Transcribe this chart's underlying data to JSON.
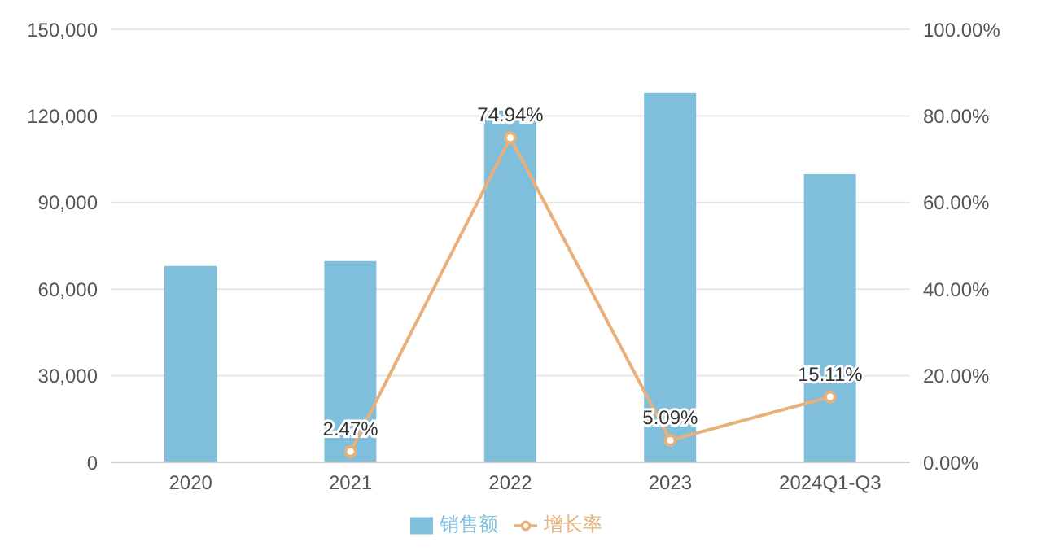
{
  "chart_data": {
    "type": "bar",
    "categories": [
      "2020",
      "2021",
      "2022",
      "2023",
      "2024Q1-Q3"
    ],
    "series": [
      {
        "name": "销售额",
        "color": "#7fbfdc",
        "values": [
          68000,
          69700,
          121900,
          128100,
          99800
        ]
      },
      {
        "name": "增长率",
        "type": "line",
        "axis": "y2",
        "color": "#e8b07a",
        "marker": "circle",
        "values": [
          null,
          2.47,
          74.94,
          5.09,
          15.11
        ],
        "value_labels": [
          null,
          "2.47%",
          "74.94%",
          "5.09%",
          "15.11%"
        ]
      }
    ],
    "ylim": [
      0,
      150000
    ],
    "yticks": [
      {
        "value": 0,
        "label": "0"
      },
      {
        "value": 30000,
        "label": "30,000"
      },
      {
        "value": 60000,
        "label": "60,000"
      },
      {
        "value": 90000,
        "label": "90,000"
      },
      {
        "value": 120000,
        "label": "120,000"
      },
      {
        "value": 150000,
        "label": "150,000"
      }
    ],
    "y2lim": [
      0,
      100
    ],
    "y2ticks": [
      {
        "value": 0,
        "label": "0.00%"
      },
      {
        "value": 20,
        "label": "20.00%"
      },
      {
        "value": 40,
        "label": "40.00%"
      },
      {
        "value": 60,
        "label": "60.00%"
      },
      {
        "value": 80,
        "label": "80.00%"
      },
      {
        "value": 100,
        "label": "100.00%"
      }
    ],
    "grid": "y",
    "legend": "bottom"
  }
}
